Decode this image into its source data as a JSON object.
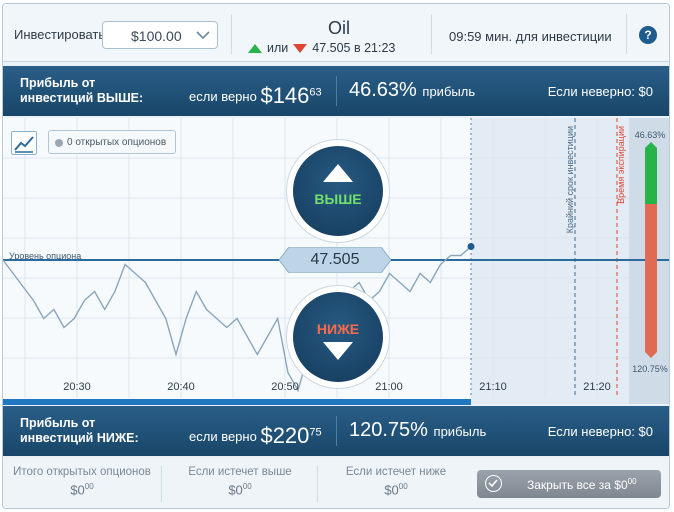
{
  "header": {
    "invest_label": "Инвестировать",
    "amount_value": "$100.00",
    "asset_name": "Oil",
    "asset_or": "или",
    "asset_price_time": "47.505 в 21:23",
    "time_left": "09:59 мин. для инвестиции",
    "help_label": "?"
  },
  "upper_bar": {
    "title_line1": "Прибыль от",
    "title_line2": "инвестиций ВЫШЕ:",
    "if_correct_label": "если верно",
    "payout_main": "$146",
    "payout_cents": "63",
    "percent": "46.63%",
    "percent_label": "прибыль",
    "if_wrong": "Если неверно: $0"
  },
  "lower_bar": {
    "title_line1": "Прибыль от",
    "title_line2": "инвестиций НИЖЕ:",
    "if_correct_label": "если верно",
    "payout_main": "$220",
    "payout_cents": "75",
    "percent": "120.75%",
    "percent_label": "прибыль",
    "if_wrong": "Если неверно: $0"
  },
  "chart": {
    "open_options": "0 открытых опционов",
    "option_level_label": "Уровень опциона",
    "current_price": "47.505",
    "up_button": "ВЫШЕ",
    "down_button": "НИЖЕ",
    "investment_deadline": "Крайний срок инвестиции",
    "expiry_time": "Время экспирации",
    "gauge_top": "46.63%",
    "gauge_bottom": "120.75%",
    "time_ticks": [
      "20:30",
      "20:40",
      "20:50",
      "21:00",
      "21:10",
      "21:20"
    ],
    "colors": {
      "up": "#27b24a",
      "down": "#e0452f",
      "line": "#1f5b8c"
    }
  },
  "chart_data": {
    "type": "line",
    "x_ticks": [
      "20:30",
      "20:40",
      "20:50",
      "21:00",
      "21:10",
      "21:20"
    ],
    "series": [
      {
        "values": [
          47.505,
          47.49,
          47.475,
          47.46,
          47.44,
          47.45,
          47.43,
          47.44,
          47.46,
          47.47,
          47.45,
          47.47,
          47.5,
          47.49,
          47.48,
          47.46,
          47.44,
          47.4,
          47.44,
          47.47,
          47.45,
          47.44,
          47.43,
          47.44,
          47.42,
          47.4,
          47.42,
          47.44,
          47.38,
          47.36,
          47.4,
          47.43,
          47.44,
          47.46,
          47.47,
          47.48,
          47.46,
          47.47,
          47.49,
          47.48,
          47.47,
          47.49,
          47.48,
          47.5,
          47.51,
          47.51,
          47.52
        ]
      }
    ],
    "option_level": 47.505
  },
  "footer": {
    "total_open_label": "Итого открытых опционов",
    "total_open_main": "$0",
    "total_open_cents": "00",
    "if_higher_label": "Если истечет выше",
    "if_higher_main": "$0",
    "if_higher_cents": "00",
    "if_lower_label": "Если истечет ниже",
    "if_lower_main": "$0",
    "if_lower_cents": "00",
    "close_all_label": "Закрыть все за $0",
    "close_all_cents": "00"
  }
}
